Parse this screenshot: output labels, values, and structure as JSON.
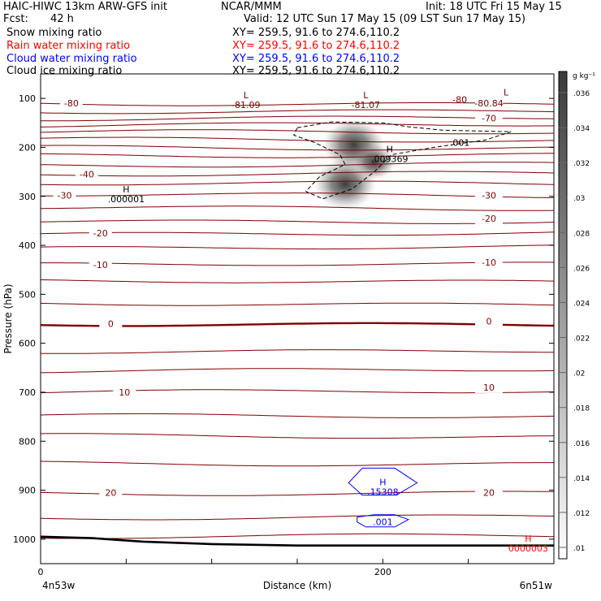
{
  "header": {
    "model": "HAIC-HIWC 13km ARW-GFS init",
    "org": "NCAR/MMM",
    "init": "Init: 18 UTC Fri 15 May 15",
    "fcst_label": "Fcst:",
    "fcst_value": "42 h",
    "valid": "Valid: 12 UTC Sun 17 May 15 (09 LST Sun 17 May 15)"
  },
  "fields": [
    {
      "name": "Snow mixing ratio",
      "xy": "XY= 259.5, 91.6 to 274.6,110.2",
      "color": "#000000"
    },
    {
      "name": "Rain water mixing ratio",
      "xy": "XY= 259.5, 91.6 to 274.6,110.2",
      "color": "#ff0000"
    },
    {
      "name": "Cloud water mixing ratio",
      "xy": "XY= 259.5, 91.6 to 274.6,110.2",
      "color": "#0000ff"
    },
    {
      "name": "Cloud ice mixing ratio",
      "xy": "XY= 259.5, 91.6 to 274.6,110.2",
      "color": "#000000"
    }
  ],
  "chart_data": {
    "type": "contour",
    "xlabel": "Distance (km)",
    "ylabel": "Pressure (hPa)",
    "xlim": [
      0,
      300
    ],
    "ylim": [
      1050,
      50
    ],
    "x_ticks": [
      0,
      200
    ],
    "y_ticks": [
      100,
      200,
      300,
      400,
      500,
      600,
      700,
      800,
      900,
      1000
    ],
    "endpoint_left": "4n53w",
    "endpoint_right": "6n51w",
    "isotherm_color": "#800000",
    "isotherms": [
      {
        "p": 110,
        "label": "-80",
        "label_x": 18
      },
      {
        "p": 125,
        "label": "",
        "label_x": null
      },
      {
        "p": 140,
        "label": "",
        "label_x": null
      },
      {
        "p": 155,
        "label": "",
        "label_x": null
      },
      {
        "p": 170,
        "label": "",
        "label_x": null
      },
      {
        "p": 185,
        "label": "",
        "label_x": null
      },
      {
        "p": 200,
        "label": "",
        "label_x": null
      },
      {
        "p": 215,
        "label": "",
        "label_x": null
      },
      {
        "p": 235,
        "label": "",
        "label_x": null
      },
      {
        "p": 255,
        "label": "-40",
        "label_x": 27
      },
      {
        "p": 275,
        "label": "",
        "label_x": null
      },
      {
        "p": 298,
        "label": "-30",
        "label_x": 14
      },
      {
        "p": 323,
        "label": "",
        "label_x": null
      },
      {
        "p": 350,
        "label": "",
        "label_x": null
      },
      {
        "p": 375,
        "label": "-20",
        "label_x": 35
      },
      {
        "p": 405,
        "label": "",
        "label_x": null
      },
      {
        "p": 440,
        "label": "-10",
        "label_x": 35
      },
      {
        "p": 475,
        "label": "",
        "label_x": null
      },
      {
        "p": 520,
        "label": "",
        "label_x": null
      },
      {
        "p": 560,
        "label": "0",
        "label_x": 41,
        "bold": true
      },
      {
        "p": 615,
        "label": "",
        "label_x": null
      },
      {
        "p": 655,
        "label": "",
        "label_x": null
      },
      {
        "p": 700,
        "label": "10",
        "label_x": 49
      },
      {
        "p": 750,
        "label": "",
        "label_x": null
      },
      {
        "p": 790,
        "label": "",
        "label_x": null
      },
      {
        "p": 845,
        "label": "",
        "label_x": null
      },
      {
        "p": 905,
        "label": "20",
        "label_x": 41
      },
      {
        "p": 955,
        "label": "",
        "label_x": null
      },
      {
        "p": 995,
        "label": "",
        "label_x": null
      }
    ],
    "right_labels": [
      {
        "p": 110,
        "label": "-80.84"
      },
      {
        "p": 140,
        "label": "-70"
      },
      {
        "p": 298,
        "label": "-30"
      },
      {
        "p": 345,
        "label": "-20"
      },
      {
        "p": 435,
        "label": "-10"
      },
      {
        "p": 555,
        "label": "0"
      },
      {
        "p": 690,
        "label": "10"
      },
      {
        "p": 905,
        "label": "20"
      }
    ],
    "extrema": [
      {
        "kind": "L",
        "value": "-81.09",
        "x": 120,
        "p": 100,
        "color": "#800000"
      },
      {
        "kind": "L",
        "value": "-81.07",
        "x": 190,
        "p": 100,
        "color": "#800000"
      },
      {
        "kind": "",
        "value": "-80",
        "x": 245,
        "p": 102,
        "color": "#800000"
      },
      {
        "kind": "L",
        "value": "",
        "x": 272,
        "p": 94,
        "color": "#800000"
      },
      {
        "kind": "H",
        "value": ".000001",
        "x": 50,
        "p": 292,
        "color": "#000000"
      },
      {
        "kind": "H",
        "value": ".009369",
        "x": 204,
        "p": 210,
        "color": "#000000"
      },
      {
        "kind": "H",
        "value": ".15308",
        "x": 200,
        "p": 890,
        "color": "#0000ff"
      },
      {
        "kind": "H",
        "value": "0000003",
        "x": 285,
        "p": 1005,
        "color": "#ff0000"
      }
    ],
    "contour_labels": [
      {
        "label": ".001",
        "x": 245,
        "p": 190,
        "color": "#000000"
      },
      {
        "label": ".001",
        "x": 200,
        "p": 965,
        "color": "#0000ff"
      }
    ],
    "ice_blobs": [
      {
        "x": 183,
        "p": 195,
        "value": 0.036
      },
      {
        "x": 178,
        "p": 275,
        "value": 0.032
      },
      {
        "x": 195,
        "p": 230,
        "value": 0.024
      }
    ],
    "terrain": [
      [
        0,
        995
      ],
      [
        30,
        998
      ],
      [
        60,
        1005
      ],
      [
        100,
        1010
      ],
      [
        150,
        1013
      ],
      [
        200,
        1013
      ],
      [
        250,
        1013
      ],
      [
        300,
        1013
      ]
    ],
    "colorbar": {
      "label": "g kg⁻¹",
      "ticks": [
        ".01",
        ".012",
        ".014",
        ".016",
        ".018",
        ".02",
        ".022",
        ".024",
        ".026",
        ".028",
        ".03",
        ".032",
        ".034",
        ".036"
      ]
    }
  }
}
